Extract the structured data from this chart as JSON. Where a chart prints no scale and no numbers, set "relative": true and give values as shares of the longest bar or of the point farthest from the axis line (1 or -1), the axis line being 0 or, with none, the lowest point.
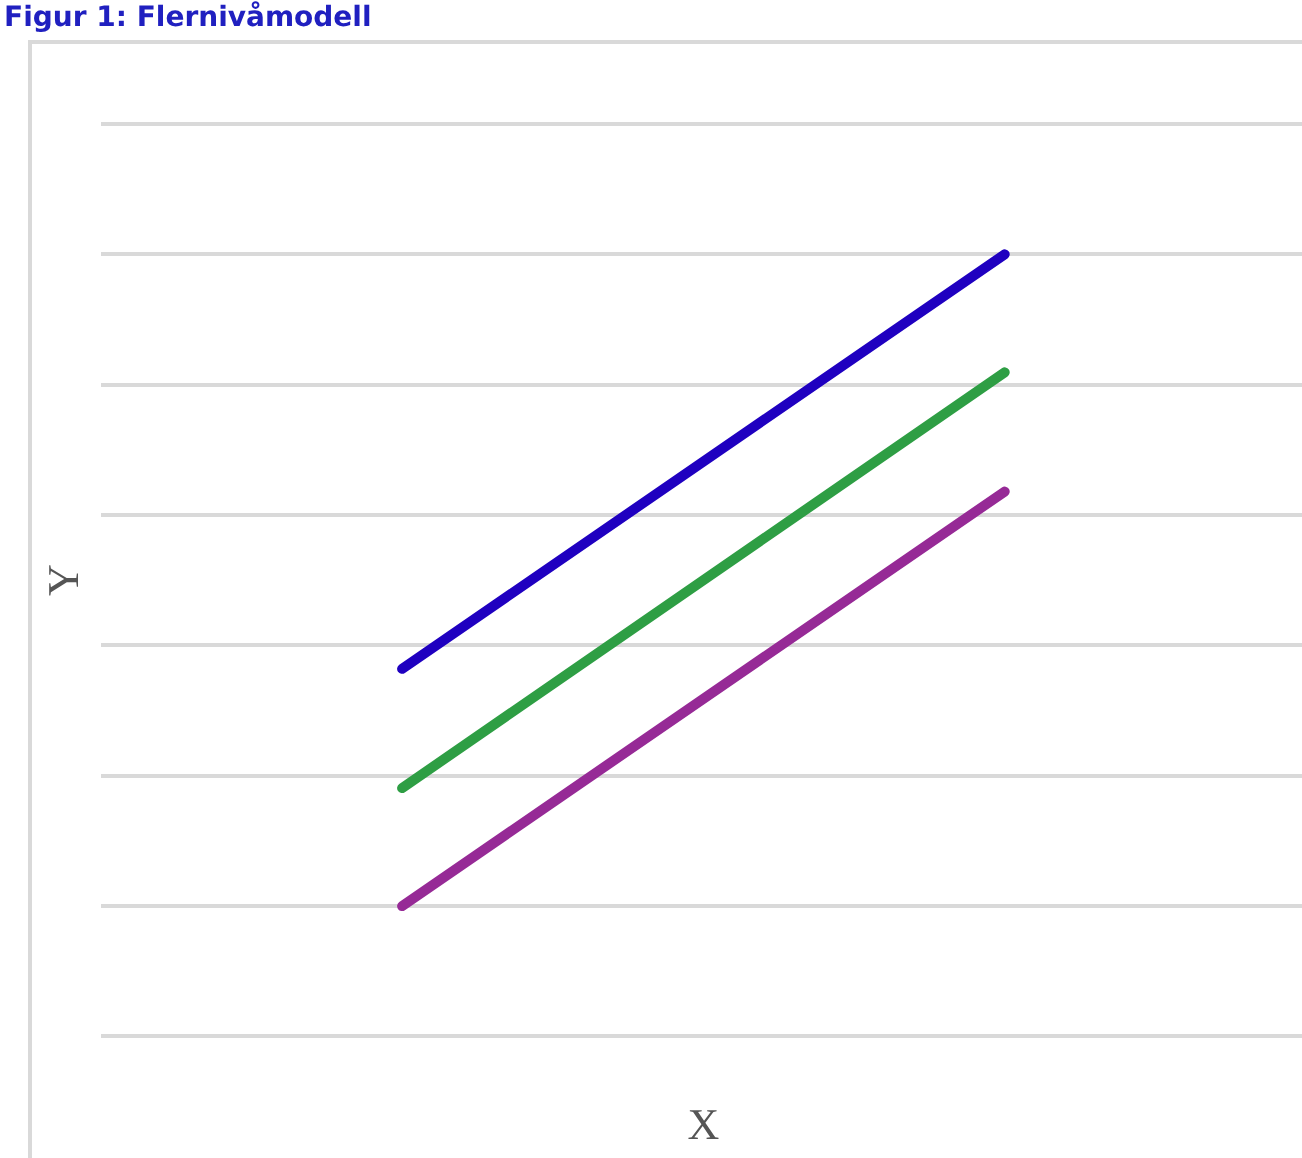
{
  "chart_data": {
    "type": "line",
    "title": "Figur 1: Flernivåmodell",
    "xlabel": "X",
    "ylabel": "Y",
    "relative": true,
    "grid": "y",
    "legend": false,
    "marker": "none",
    "categories": [
      null,
      null
    ],
    "series": [
      {
        "color": "#1f00c0",
        "values": [
          0.364,
          1
        ]
      },
      {
        "color": "#2e9e44",
        "values": [
          0.181,
          0.819
        ]
      },
      {
        "color": "#962a96",
        "values": [
          0,
          0.636
        ]
      }
    ]
  }
}
